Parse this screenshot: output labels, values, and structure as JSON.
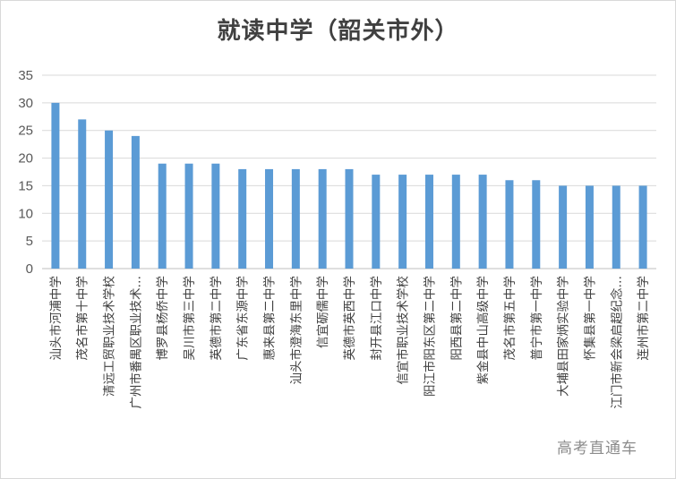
{
  "chart_data": {
    "type": "bar",
    "title": "就读中学（韶关市外）",
    "xlabel": "",
    "ylabel": "",
    "ylim": [
      0,
      35
    ],
    "yticks": [
      0,
      5,
      10,
      15,
      20,
      25,
      30,
      35
    ],
    "grid": true,
    "bar_color": "#5b9bd5",
    "categories": [
      "汕头市河浦中学",
      "茂名市第十中学",
      "清远工贸职业技术学校",
      "广州市番禺区职业技术…",
      "博罗县杨侨中学",
      "吴川市第三中学",
      "英德市第二中学",
      "广东省东源中学",
      "惠来县第二中学",
      "汕头市澄海东里中学",
      "信宜砺儒中学",
      "英德市英西中学",
      "封开县江口中学",
      "信宜市职业技术学校",
      "阳江市阳东区第二中学",
      "阳西县第二中学",
      "紫金县中山高级中学",
      "茂名市第五中学",
      "普宁市第一中学",
      "大埔县田家炳实验中学",
      "怀集县第一中学",
      "江门市新会梁启超纪念…",
      "连州市第二中学"
    ],
    "values": [
      30,
      27,
      25,
      24,
      19,
      19,
      19,
      18,
      18,
      18,
      18,
      18,
      17,
      17,
      17,
      17,
      17,
      16,
      16,
      15,
      15,
      15,
      15
    ]
  },
  "watermark": "高考直通车"
}
